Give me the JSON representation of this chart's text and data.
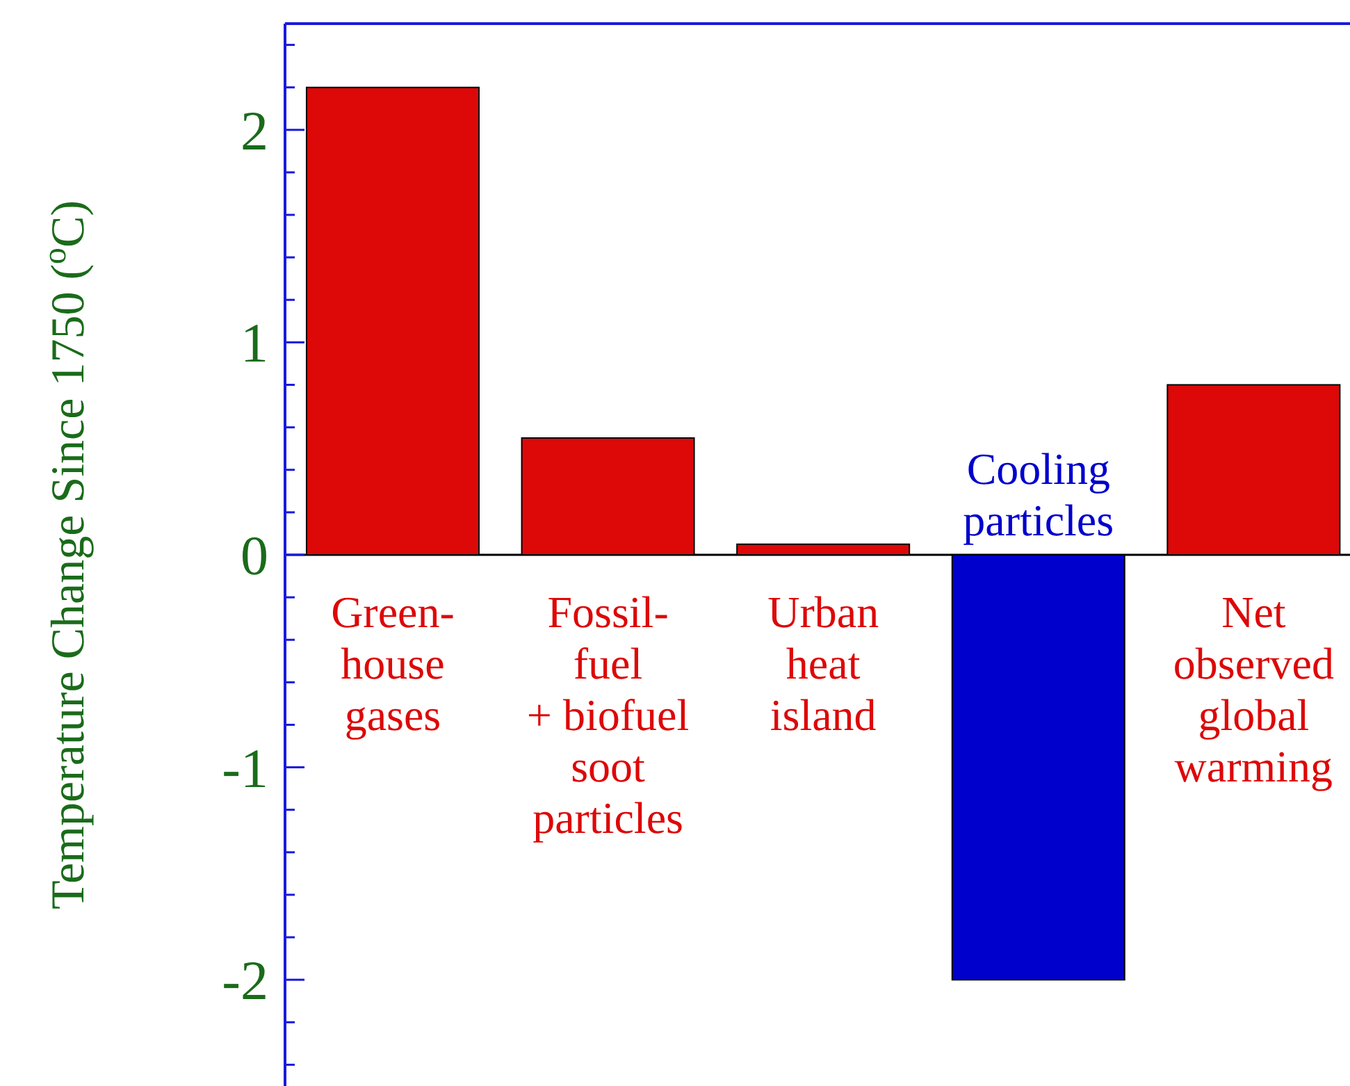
{
  "chart_data": {
    "type": "bar",
    "ylabel": "Temperature Change Since 1750 ($^{o}$C)",
    "categories": [
      "Green-\nhouse\ngases",
      "Fossil-\nfuel\n+ biofuel\nsoot\nparticles",
      "Urban\nheat\nisland",
      "Cooling\nparticles",
      "Net\nobserved\nglobal\nwarming"
    ],
    "values": [
      2.2,
      0.55,
      0.05,
      -2.0,
      0.8
    ],
    "colors": [
      "#dd0808",
      "#dd0808",
      "#dd0808",
      "#0000cc",
      "#dd0808"
    ],
    "ylim": [
      -2.5,
      2.5
    ],
    "yticks": [
      {
        "value": -2.4,
        "label": null
      },
      {
        "value": -2.2,
        "label": null
      },
      -2,
      {
        "value": -1.8,
        "label": null
      },
      {
        "value": -1.6,
        "label": null
      },
      {
        "value": -1.4,
        "label": null
      },
      {
        "value": -1.2,
        "label": null
      },
      -1,
      {
        "value": -0.8,
        "label": null
      },
      {
        "value": -0.6,
        "label": null
      },
      {
        "value": -0.4,
        "label": null
      },
      {
        "value": -0.2,
        "label": null
      },
      0,
      {
        "value": 0.2,
        "label": null
      },
      {
        "value": 0.4,
        "label": null
      },
      {
        "value": 0.6,
        "label": null
      },
      {
        "value": 0.8,
        "label": null
      },
      1,
      {
        "value": 1.2,
        "label": null
      },
      {
        "value": 1.4,
        "label": null
      },
      {
        "value": 1.6,
        "label": null
      },
      {
        "value": 1.8,
        "label": null
      },
      2,
      {
        "value": 2.2,
        "label": null
      },
      {
        "value": 2.4,
        "label": null
      }
    ]
  }
}
